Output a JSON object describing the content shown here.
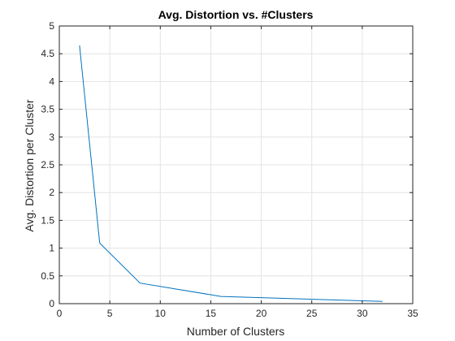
{
  "chart_data": {
    "type": "line",
    "title": "Avg. Distortion vs. #Clusters",
    "xlabel": "Number of Clusters",
    "ylabel": "Avg. Distortion per Cluster",
    "xlim": [
      0,
      35
    ],
    "ylim": [
      0,
      5
    ],
    "xticks": [
      0,
      5,
      10,
      15,
      20,
      25,
      30,
      35
    ],
    "yticks": [
      0,
      0.5,
      1,
      1.5,
      2,
      2.5,
      3,
      3.5,
      4,
      4.5,
      5
    ],
    "grid": true,
    "series": [
      {
        "x": [
          2,
          4,
          8,
          16,
          32
        ],
        "y": [
          4.65,
          1.09,
          0.37,
          0.13,
          0.04
        ],
        "color": "#0072BD"
      }
    ]
  }
}
